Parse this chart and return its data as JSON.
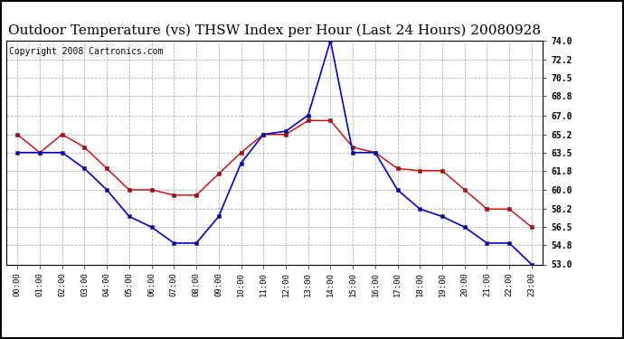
{
  "title": "Outdoor Temperature (vs) THSW Index per Hour (Last 24 Hours) 20080928",
  "copyright": "Copyright 2008 Cartronics.com",
  "hours": [
    0,
    1,
    2,
    3,
    4,
    5,
    6,
    7,
    8,
    9,
    10,
    11,
    12,
    13,
    14,
    15,
    16,
    17,
    18,
    19,
    20,
    21,
    22,
    23
  ],
  "temp": [
    65.2,
    63.5,
    65.2,
    64.0,
    62.0,
    60.0,
    60.0,
    59.5,
    59.5,
    61.5,
    63.5,
    65.2,
    65.2,
    66.5,
    66.5,
    64.0,
    63.5,
    62.0,
    61.8,
    61.8,
    60.0,
    58.2,
    58.2,
    56.5
  ],
  "thsw": [
    63.5,
    63.5,
    63.5,
    62.0,
    60.0,
    57.5,
    56.5,
    55.0,
    55.0,
    57.5,
    62.5,
    65.2,
    65.5,
    67.0,
    74.0,
    63.5,
    63.5,
    60.0,
    58.2,
    57.5,
    56.5,
    55.0,
    55.0,
    53.0
  ],
  "temp_color": "#cc0000",
  "thsw_color": "#0000cc",
  "ylim_min": 53.0,
  "ylim_max": 74.0,
  "yticks": [
    53.0,
    54.8,
    56.5,
    58.2,
    60.0,
    61.8,
    63.5,
    65.2,
    67.0,
    68.8,
    70.5,
    72.2,
    74.0
  ],
  "background_color": "#ffffff",
  "grid_color": "#aaaaaa",
  "title_fontsize": 11,
  "copyright_fontsize": 7
}
